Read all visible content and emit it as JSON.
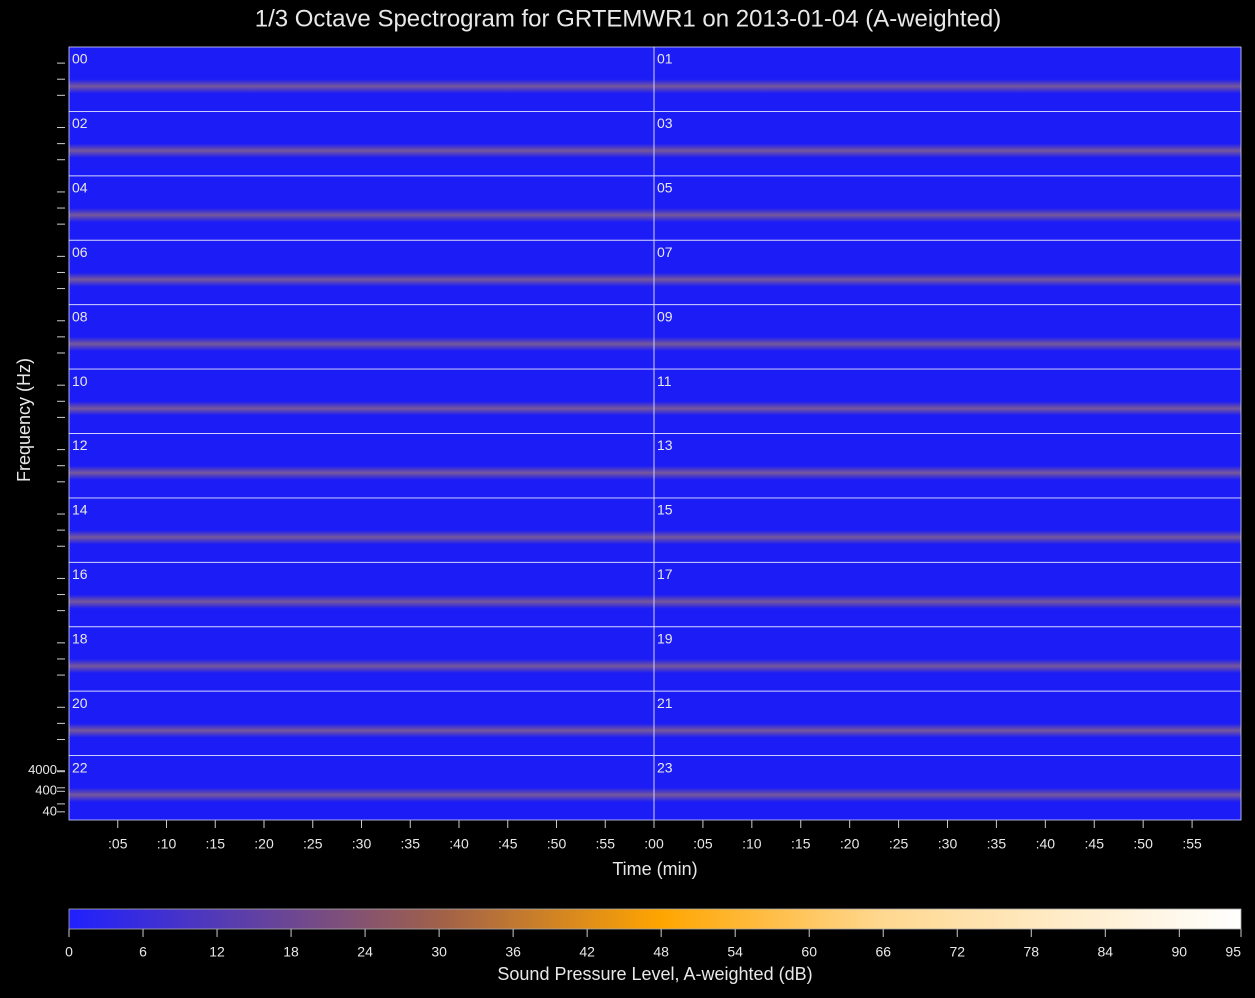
{
  "chart_data": {
    "type": "spectrogram",
    "title": "1/3 Octave Spectrogram for GRTEMWR1 on 2013-01-04 (A-weighted)",
    "xlabel": "Time (min)",
    "ylabel": "Frequency (Hz)",
    "panels": [
      "00",
      "01",
      "02",
      "03",
      "04",
      "05",
      "06",
      "07",
      "08",
      "09",
      "10",
      "11",
      "12",
      "13",
      "14",
      "15",
      "16",
      "17",
      "18",
      "19",
      "20",
      "21",
      "22",
      "23"
    ],
    "xlim": [
      0,
      120
    ],
    "xticks": [
      {
        "value": 5,
        "label": ":05"
      },
      {
        "value": 10,
        "label": ":10"
      },
      {
        "value": 15,
        "label": ":15"
      },
      {
        "value": 20,
        "label": ":20"
      },
      {
        "value": 25,
        "label": ":25"
      },
      {
        "value": 30,
        "label": ":30"
      },
      {
        "value": 35,
        "label": ":35"
      },
      {
        "value": 40,
        "label": ":40"
      },
      {
        "value": 45,
        "label": ":45"
      },
      {
        "value": 50,
        "label": ":50"
      },
      {
        "value": 55,
        "label": ":55"
      },
      {
        "value": 60,
        "label": ":00"
      },
      {
        "value": 65,
        "label": ":05"
      },
      {
        "value": 70,
        "label": ":10"
      },
      {
        "value": 75,
        "label": ":15"
      },
      {
        "value": 80,
        "label": ":20"
      },
      {
        "value": 85,
        "label": ":25"
      },
      {
        "value": 90,
        "label": ":30"
      },
      {
        "value": 95,
        "label": ":35"
      },
      {
        "value": 100,
        "label": ":40"
      },
      {
        "value": 105,
        "label": ":45"
      },
      {
        "value": 110,
        "label": ":50"
      },
      {
        "value": 115,
        "label": ":55"
      }
    ],
    "log_scale": true,
    "ylim": [
      16,
      22000
    ],
    "yticks": [
      4000,
      400,
      40
    ],
    "colorbar": {
      "label": "Sound Pressure Level, A-weighted (dB)",
      "lim": [
        0,
        95
      ],
      "ticks": [
        0,
        6,
        12,
        18,
        24,
        30,
        36,
        42,
        48,
        54,
        60,
        66,
        72,
        78,
        84,
        90,
        95
      ],
      "colormap": [
        [
          0,
          "#2020ff"
        ],
        [
          30,
          "#a0604a"
        ],
        [
          48,
          "#ffa500"
        ],
        [
          66,
          "#ffd890"
        ],
        [
          95,
          "#ffffff"
        ]
      ]
    }
  }
}
